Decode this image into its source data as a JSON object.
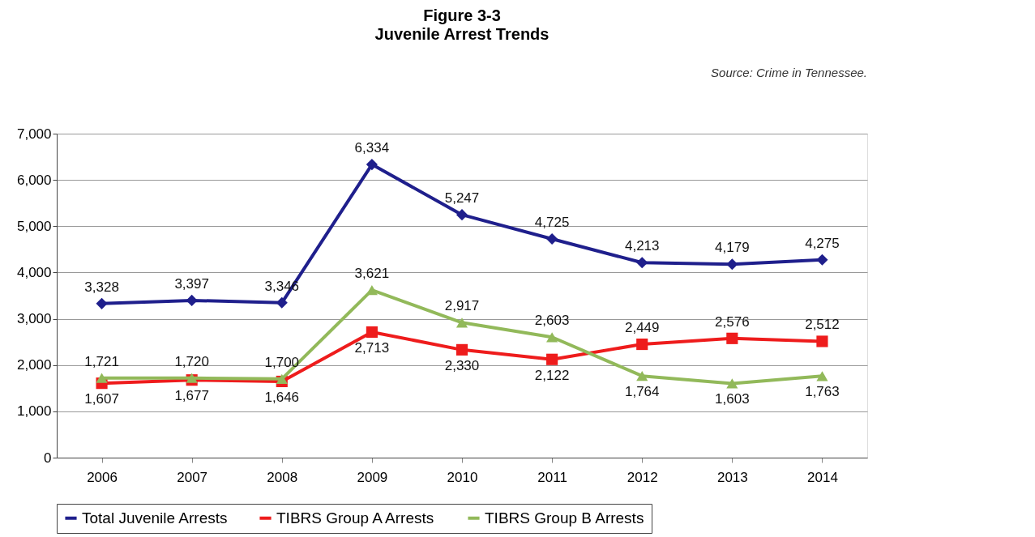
{
  "chart_data": {
    "type": "line",
    "title": "Figure 3-3",
    "subtitle": "Juvenile Arrest Trends",
    "categories": [
      "2006",
      "2007",
      "2008",
      "2009",
      "2010",
      "2011",
      "2012",
      "2013",
      "2014"
    ],
    "series": [
      {
        "name": "Total Juvenile Arrests",
        "color": "#1f1f8c",
        "marker": "diamond",
        "values": [
          3328,
          3397,
          3346,
          6334,
          5247,
          4725,
          4213,
          4179,
          4275
        ],
        "value_labels": [
          "3,328",
          "3,397",
          "3,346",
          "6,334",
          "5,247",
          "4,725",
          "4,213",
          "4,179",
          "4,275"
        ]
      },
      {
        "name": "TIBRS Group A Arrests",
        "color": "#ee1c1c",
        "marker": "square",
        "values": [
          1607,
          1677,
          1646,
          2713,
          2330,
          2122,
          2449,
          2576,
          2512
        ],
        "value_labels": [
          "1,607",
          "1,677",
          "1,646",
          "2,713",
          "2,330",
          "2,122",
          "2,449",
          "2,576",
          "2,512"
        ]
      },
      {
        "name": "TIBRS Group B Arrests",
        "color": "#92b95a",
        "marker": "triangle",
        "values": [
          1721,
          1720,
          1700,
          3621,
          2917,
          2603,
          1764,
          1603,
          1763
        ],
        "value_labels": [
          "1,721",
          "1,720",
          "1,700",
          "3,621",
          "2,917",
          "2,603",
          "1,764",
          "1,603",
          "1,763"
        ]
      }
    ],
    "ylim": [
      0,
      7000
    ],
    "yticks": [
      0,
      {
        "value": 1000,
        "label": "1,000"
      },
      {
        "value": 2000,
        "label": "2,000"
      },
      {
        "value": 3000,
        "label": "3,000"
      },
      {
        "value": 4000,
        "label": "4,000"
      },
      {
        "value": 5000,
        "label": "5,000"
      },
      {
        "value": 6000,
        "label": "6,000"
      },
      {
        "value": 7000,
        "label": "7,000"
      }
    ],
    "grid": "y",
    "legend": "bottom",
    "line_style": "solid",
    "annotations": [
      "Source: Crime in Tennessee."
    ]
  }
}
